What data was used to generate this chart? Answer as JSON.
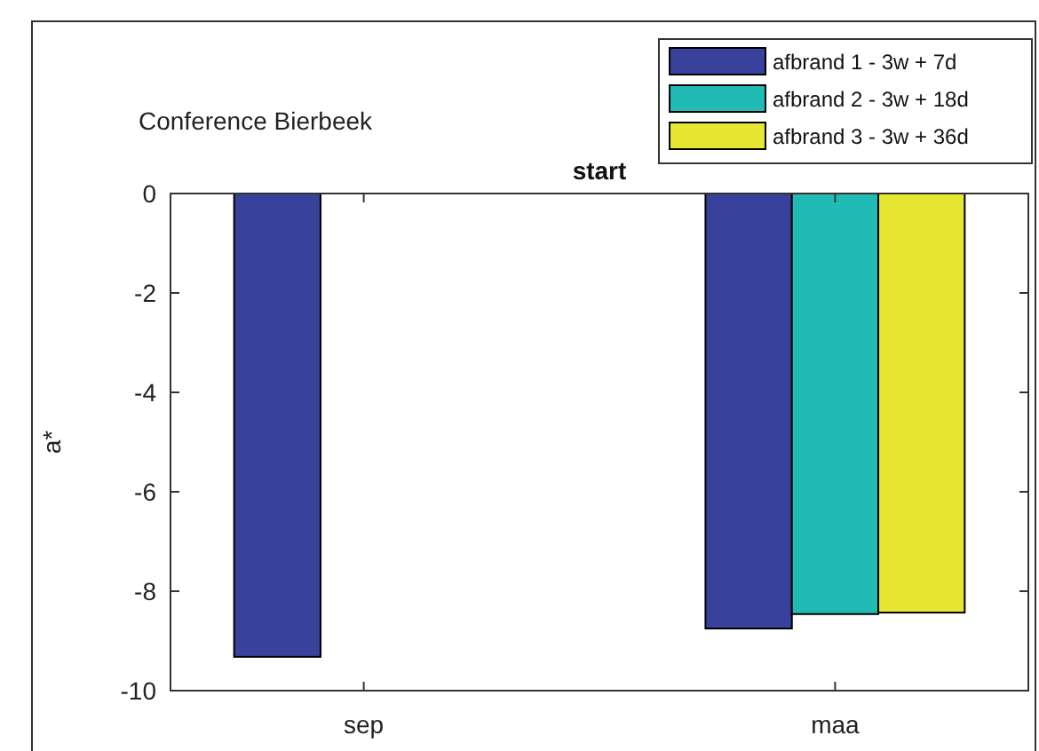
{
  "chart_data": {
    "type": "bar",
    "title": "start",
    "ylabel": "a*",
    "annotations": [
      "Conference Bierbeek"
    ],
    "categories": [
      "sep",
      "maa"
    ],
    "series": [
      {
        "name": "afbrand 1 - 3w + 7d",
        "color": "#38419c",
        "values": [
          -9.32,
          -8.75
        ]
      },
      {
        "name": "afbrand 2 - 3w + 18d",
        "color": "#20bbb4",
        "values": [
          null,
          -8.46
        ]
      },
      {
        "name": "afbrand 3 - 3w + 36d",
        "color": "#e6e632",
        "values": [
          null,
          -8.43
        ]
      }
    ],
    "ylim": [
      -10,
      0
    ],
    "yticks": [
      -10,
      -8,
      -6,
      -4,
      -2,
      0
    ],
    "grid": false,
    "legend": "top right"
  }
}
